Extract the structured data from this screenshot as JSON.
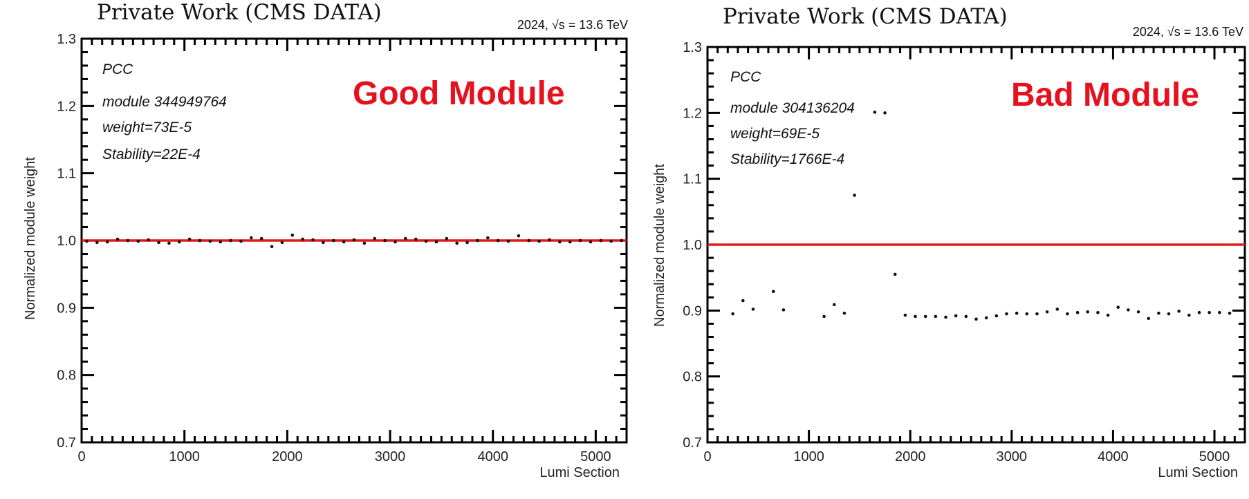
{
  "chart_data": [
    {
      "type": "scatter",
      "title": "Private Work (CMS DATA)",
      "energy_label": "2024,   √s = 13.6 TeV",
      "xlabel": "Lumi Section",
      "ylabel": "Normalized module weight",
      "xlim": [
        0,
        5300
      ],
      "ylim": [
        0.7,
        1.3
      ],
      "xticks": [
        "0",
        "1000",
        "2000",
        "3000",
        "4000",
        "5000"
      ],
      "yticks": [
        "0.7",
        "0.8",
        "0.9",
        "1.0",
        "1.1",
        "1.2",
        "1.3"
      ],
      "annotations": [
        "PCC",
        "module 344949764",
        "weight=73E-5",
        "Stability=22E-4"
      ],
      "tag": "Good Module",
      "reference_y": 1.0,
      "reference_color": "#e01a1a",
      "tag_color": "#e8101c",
      "points": [
        [
          50,
          0.999
        ],
        [
          150,
          0.997
        ],
        [
          250,
          0.998
        ],
        [
          350,
          1.002
        ],
        [
          450,
          1.0
        ],
        [
          550,
          0.999
        ],
        [
          650,
          1.001
        ],
        [
          750,
          0.997
        ],
        [
          850,
          0.996
        ],
        [
          950,
          0.998
        ],
        [
          1050,
          1.002
        ],
        [
          1150,
          1.0
        ],
        [
          1250,
          0.999
        ],
        [
          1350,
          0.998
        ],
        [
          1450,
          1.0
        ],
        [
          1550,
          0.999
        ],
        [
          1650,
          1.004
        ],
        [
          1750,
          1.003
        ],
        [
          1850,
          0.991
        ],
        [
          1950,
          0.997
        ],
        [
          2050,
          1.008
        ],
        [
          2150,
          1.002
        ],
        [
          2250,
          1.001
        ],
        [
          2350,
          0.997
        ],
        [
          2450,
          1.0
        ],
        [
          2550,
          0.998
        ],
        [
          2650,
          1.001
        ],
        [
          2750,
          0.996
        ],
        [
          2850,
          1.003
        ],
        [
          2950,
          1.0
        ],
        [
          3050,
          0.998
        ],
        [
          3150,
          1.003
        ],
        [
          3250,
          1.002
        ],
        [
          3350,
          0.999
        ],
        [
          3450,
          0.998
        ],
        [
          3550,
          1.003
        ],
        [
          3650,
          0.996
        ],
        [
          3750,
          0.997
        ],
        [
          3850,
          1.0
        ],
        [
          3950,
          1.004
        ],
        [
          4050,
          1.0
        ],
        [
          4150,
          0.999
        ],
        [
          4250,
          1.007
        ],
        [
          4350,
          1.0
        ],
        [
          4450,
          0.999
        ],
        [
          4550,
          1.001
        ],
        [
          4650,
          0.998
        ],
        [
          4750,
          0.998
        ],
        [
          4850,
          1.0
        ],
        [
          4950,
          0.998
        ],
        [
          5050,
          1.0
        ],
        [
          5150,
          0.999
        ],
        [
          5250,
          1.0
        ]
      ]
    },
    {
      "type": "scatter",
      "title": "Private Work (CMS DATA)",
      "energy_label": "2024,   √s = 13.6 TeV",
      "xlabel": "Lumi Section",
      "ylabel": "Normalized module weight",
      "xlim": [
        0,
        5300
      ],
      "ylim": [
        0.7,
        1.3
      ],
      "xticks": [
        "0",
        "1000",
        "2000",
        "3000",
        "4000",
        "5000"
      ],
      "yticks": [
        "0.7",
        "0.8",
        "0.9",
        "1.0",
        "1.1",
        "1.2",
        "1.3"
      ],
      "annotations": [
        "PCC",
        "module 304136204",
        "weight=69E-5",
        "Stability=1766E-4"
      ],
      "tag": "Bad Module",
      "reference_y": 1.0,
      "reference_color": "#e01a1a",
      "tag_color": "#e8101c",
      "points": [
        [
          250,
          0.895
        ],
        [
          350,
          0.915
        ],
        [
          450,
          0.902
        ],
        [
          650,
          0.929
        ],
        [
          750,
          0.901
        ],
        [
          1150,
          0.891
        ],
        [
          1250,
          0.909
        ],
        [
          1350,
          0.896
        ],
        [
          1450,
          1.075
        ],
        [
          1650,
          1.201
        ],
        [
          1750,
          1.2
        ],
        [
          1850,
          0.955
        ],
        [
          1950,
          0.893
        ],
        [
          2050,
          0.891
        ],
        [
          2150,
          0.891
        ],
        [
          2250,
          0.891
        ],
        [
          2350,
          0.89
        ],
        [
          2450,
          0.892
        ],
        [
          2550,
          0.891
        ],
        [
          2650,
          0.887
        ],
        [
          2750,
          0.889
        ],
        [
          2850,
          0.892
        ],
        [
          2950,
          0.895
        ],
        [
          3050,
          0.896
        ],
        [
          3150,
          0.895
        ],
        [
          3250,
          0.895
        ],
        [
          3350,
          0.898
        ],
        [
          3450,
          0.902
        ],
        [
          3550,
          0.895
        ],
        [
          3650,
          0.897
        ],
        [
          3750,
          0.898
        ],
        [
          3850,
          0.897
        ],
        [
          3950,
          0.893
        ],
        [
          4050,
          0.905
        ],
        [
          4150,
          0.901
        ],
        [
          4250,
          0.898
        ],
        [
          4350,
          0.888
        ],
        [
          4450,
          0.896
        ],
        [
          4550,
          0.895
        ],
        [
          4650,
          0.899
        ],
        [
          4750,
          0.893
        ],
        [
          4850,
          0.897
        ],
        [
          4950,
          0.897
        ],
        [
          5050,
          0.897
        ],
        [
          5150,
          0.896
        ]
      ]
    }
  ]
}
